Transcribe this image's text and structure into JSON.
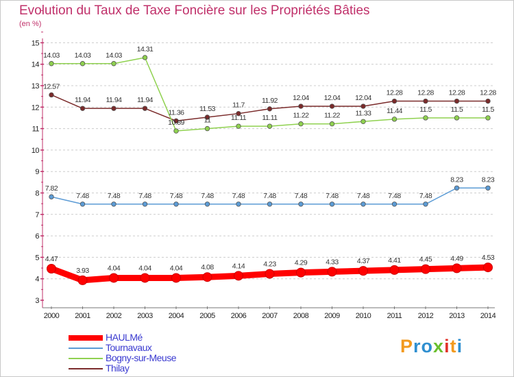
{
  "title": "Evolution du Taux de Taxe Foncière sur les Propriétés Bâties",
  "subtitle": "(en %)",
  "logo": {
    "letters": [
      "P",
      "r",
      "o",
      "x",
      "i",
      "t",
      "i"
    ],
    "colors": [
      "#f29a1f",
      "#2f8fd0",
      "#2f8fd0",
      "#6abf2e",
      "#e2342b",
      "#f29a1f",
      "#2f8fd0"
    ]
  },
  "chart_data": {
    "type": "line",
    "title": "Evolution du Taux de Taxe Foncière sur les Propriétés Bâties",
    "ylabel": "(en %)",
    "xlabel": "",
    "x": [
      "2000",
      "2001",
      "2002",
      "2003",
      "2004",
      "2005",
      "2006",
      "2007",
      "2008",
      "2009",
      "2010",
      "2011",
      "2012",
      "2013",
      "2014"
    ],
    "ylim": [
      3,
      15
    ],
    "yticks": [
      "3",
      "4",
      "5",
      "6",
      "7",
      "8",
      "9",
      "10",
      "11",
      "12",
      "13",
      "14",
      "15"
    ],
    "grid": "horizontal dashed",
    "legend_position": "bottom-left",
    "series": [
      {
        "name": "HAULMé",
        "color": "#ff0000",
        "values": [
          4.47,
          3.93,
          4.04,
          4.04,
          4.04,
          4.08,
          4.14,
          4.23,
          4.29,
          4.33,
          4.37,
          4.41,
          4.45,
          4.49,
          4.53
        ],
        "labels": [
          "4.47",
          "3.93",
          "4.04",
          "4.04",
          "4.04",
          "4.08",
          "4.14",
          "4.23",
          "4.29",
          "4.33",
          "4.37",
          "4.41",
          "4.45",
          "4.49",
          "4.53"
        ]
      },
      {
        "name": "Tournavaux",
        "color": "#5b9bd5",
        "values": [
          7.82,
          7.48,
          7.48,
          7.48,
          7.48,
          7.48,
          7.48,
          7.48,
          7.48,
          7.48,
          7.48,
          7.48,
          7.48,
          8.23,
          8.23
        ],
        "labels": [
          "7.82",
          "7.48",
          "7.48",
          "7.48",
          "7.48",
          "7.48",
          "7.48",
          "7.48",
          "7.48",
          "7.48",
          "7.48",
          "7.48",
          "7.48",
          "8.23",
          "8.23"
        ]
      },
      {
        "name": "Bogny-sur-Meuse",
        "color": "#8fd14f",
        "values": [
          14.03,
          14.03,
          14.03,
          14.31,
          10.89,
          11.0,
          11.11,
          11.11,
          11.22,
          11.22,
          11.33,
          11.44,
          11.5,
          11.5,
          11.5
        ],
        "labels": [
          "14.03",
          "14.03",
          "14.03",
          "14.31",
          "10.89",
          "11",
          "11.11",
          "11.11",
          "11.22",
          "11.22",
          "11.33",
          "11.44",
          "11.5",
          "11.5",
          "11.5"
        ]
      },
      {
        "name": "Thilay",
        "color": "#7a2a2a",
        "values": [
          12.57,
          11.94,
          11.94,
          11.94,
          11.36,
          11.53,
          11.7,
          11.92,
          12.04,
          12.04,
          12.04,
          12.28,
          12.28,
          12.28,
          12.28
        ],
        "labels": [
          "12.57",
          "11.94",
          "11.94",
          "11.94",
          "11.36",
          "11.53",
          "11.7",
          "11.92",
          "12.04",
          "12.04",
          "12.04",
          "12.28",
          "12.28",
          "12.28",
          "12.28"
        ]
      }
    ]
  }
}
